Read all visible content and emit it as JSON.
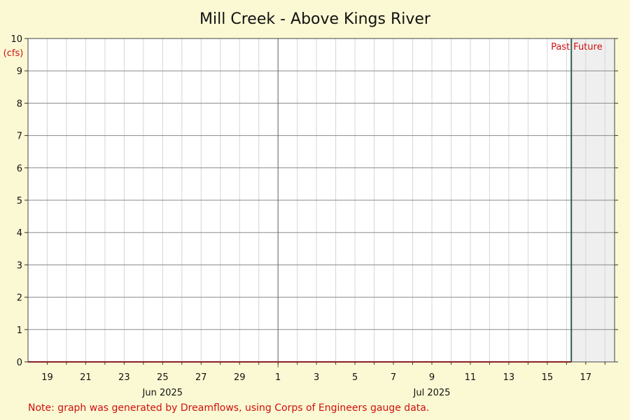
{
  "chart_data": {
    "type": "line",
    "title": "Mill Creek - Above Kings River",
    "ylabel": "(cfs)",
    "xlabel": "",
    "ylim": [
      0,
      10
    ],
    "yticks": [
      0,
      1,
      2,
      3,
      4,
      5,
      6,
      7,
      8,
      9,
      10
    ],
    "xlim": [
      "2025-06-18",
      "2025-07-18T12:00"
    ],
    "x_tick_labels": [
      {
        "date": "2025-06-19",
        "label": "19"
      },
      {
        "date": "2025-06-21",
        "label": "21"
      },
      {
        "date": "2025-06-23",
        "label": "23"
      },
      {
        "date": "2025-06-25",
        "label": "25"
      },
      {
        "date": "2025-06-27",
        "label": "27"
      },
      {
        "date": "2025-06-29",
        "label": "29"
      },
      {
        "date": "2025-07-01",
        "label": "1"
      },
      {
        "date": "2025-07-03",
        "label": "3"
      },
      {
        "date": "2025-07-05",
        "label": "5"
      },
      {
        "date": "2025-07-07",
        "label": "7"
      },
      {
        "date": "2025-07-09",
        "label": "9"
      },
      {
        "date": "2025-07-11",
        "label": "11"
      },
      {
        "date": "2025-07-13",
        "label": "13"
      },
      {
        "date": "2025-07-15",
        "label": "15"
      },
      {
        "date": "2025-07-17",
        "label": "17"
      }
    ],
    "month_labels": [
      {
        "date": "2025-06-25",
        "label": "Jun 2025"
      },
      {
        "date": "2025-07-09",
        "label": "Jul 2025"
      }
    ],
    "month_boundary": "2025-07-01",
    "now": "2025-07-16T06:00",
    "past_label": "Past",
    "future_label": "Future",
    "series": [
      {
        "color": "#cc0000",
        "points": [
          {
            "x": "2025-06-18",
            "y": 0
          },
          {
            "x": "2025-07-16T06:00",
            "y": 0
          }
        ]
      }
    ],
    "grid": true,
    "note": "Note: graph was generated by Dreamflows, using Corps of Engineers gauge data."
  }
}
